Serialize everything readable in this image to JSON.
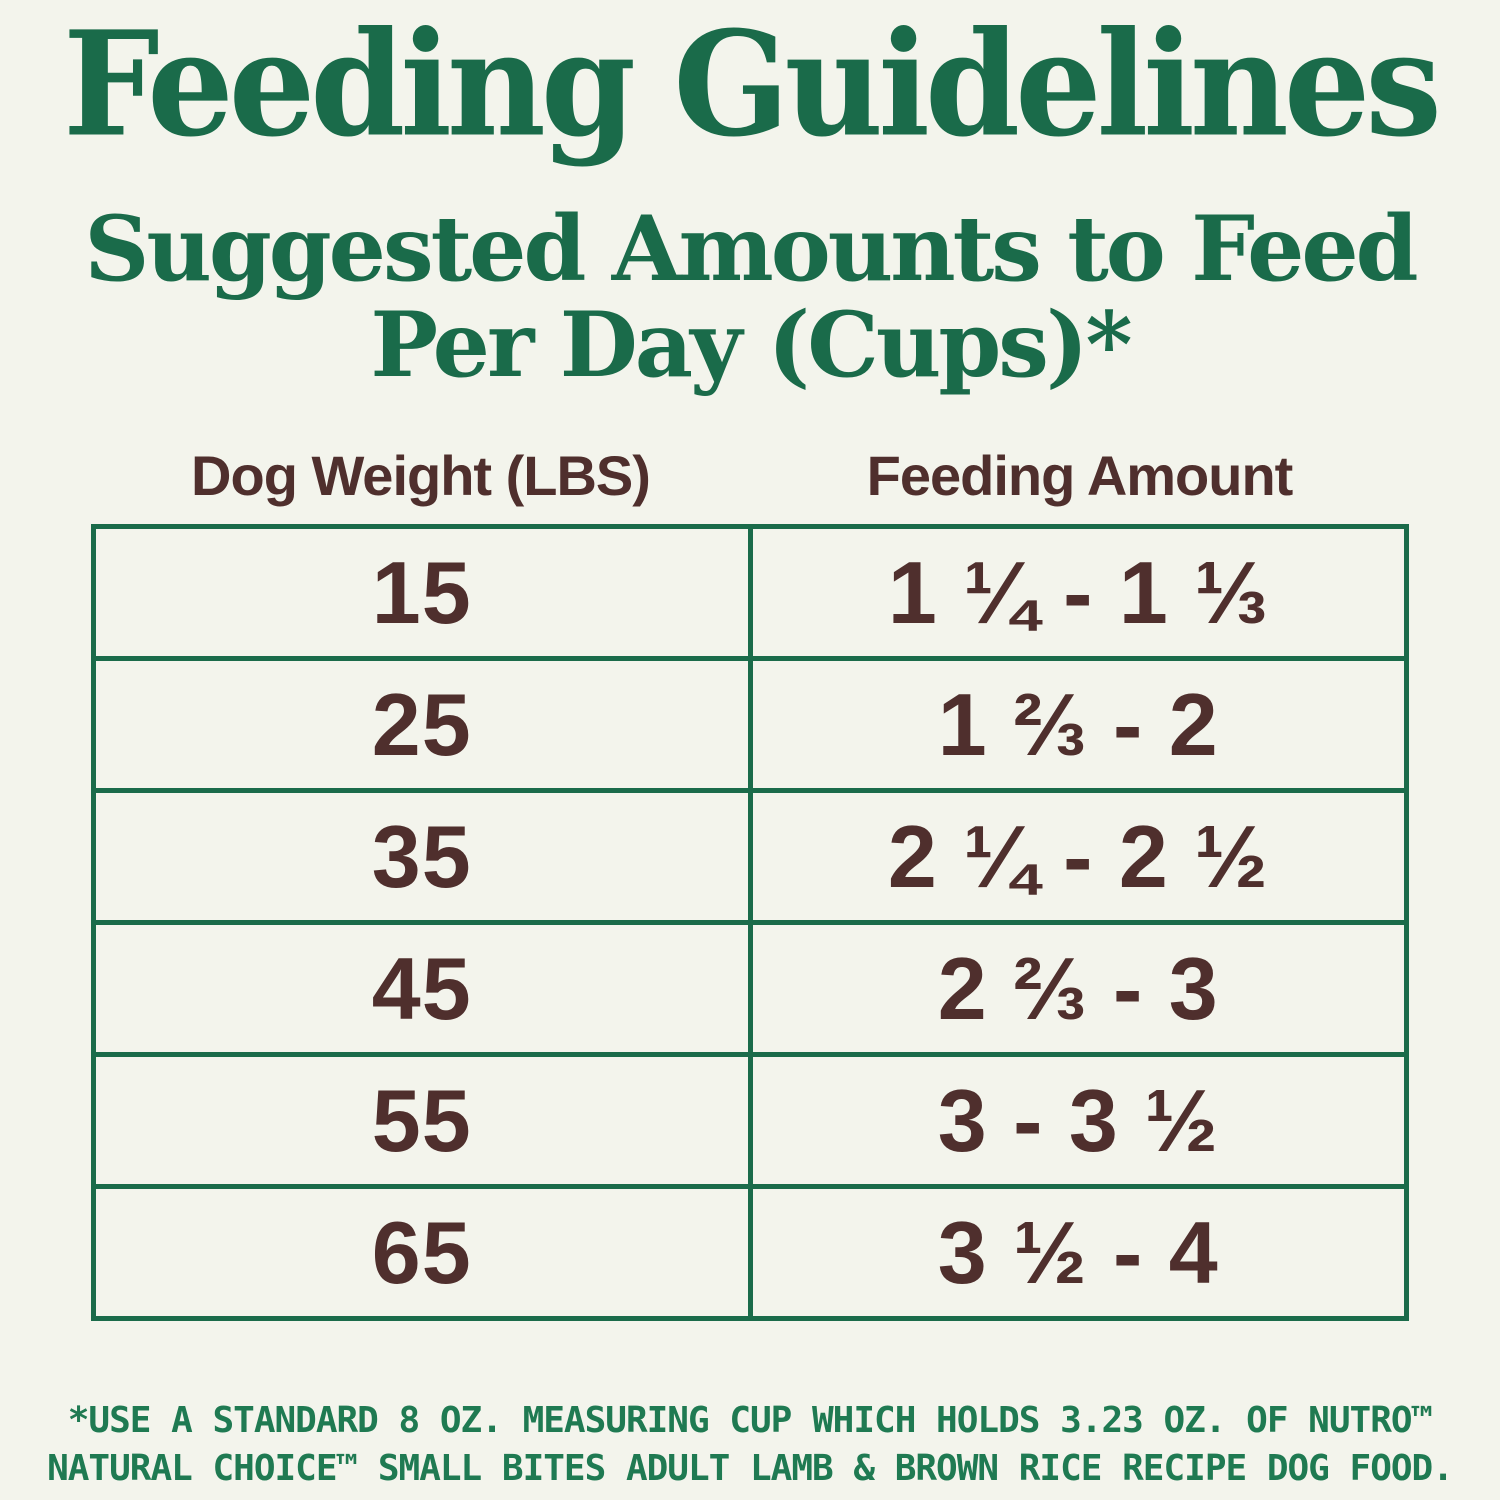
{
  "page": {
    "title": "Feeding Guidelines",
    "subtitle_line1": "Suggested Amounts to Feed",
    "subtitle_line2": "Per Day (Cups)*"
  },
  "table": {
    "columns": [
      "Dog Weight (LBS)",
      "Feeding Amount"
    ],
    "rows": [
      {
        "weight": "15",
        "amount": "1 ¼ - 1 ⅓"
      },
      {
        "weight": "25",
        "amount": "1 ⅔ - 2"
      },
      {
        "weight": "35",
        "amount": "2 ¼ - 2 ½"
      },
      {
        "weight": "45",
        "amount": "2 ⅔ - 3"
      },
      {
        "weight": "55",
        "amount": "3 - 3 ½"
      },
      {
        "weight": "65",
        "amount": "3 ½ - 4"
      }
    ]
  },
  "footnote": {
    "line1": "*USE A STANDARD 8 OZ. MEASURING CUP WHICH HOLDS 3.23 OZ. OF NUTRO™",
    "line2": "NATURAL CHOICE™ SMALL BITES ADULT LAMB & BROWN RICE RECIPE DOG FOOD."
  },
  "colors": {
    "green": "#1a6b4a",
    "footer_green": "#1f7a52",
    "brown": "#4f2f2d",
    "background": "#f3f4ec"
  }
}
